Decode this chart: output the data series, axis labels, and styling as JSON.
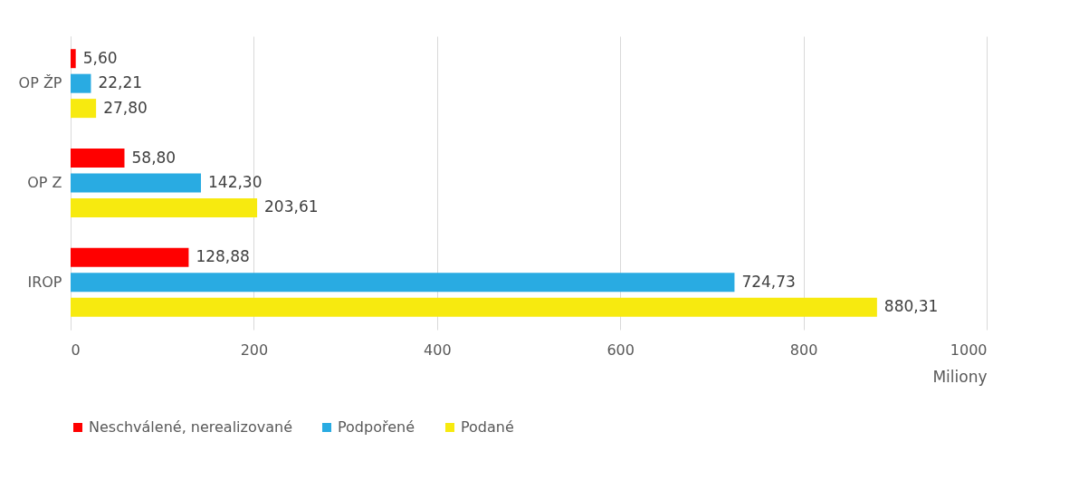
{
  "chart_data": {
    "type": "bar",
    "orientation": "horizontal",
    "categories": [
      "OP ŽP",
      "OP Z",
      "IROP"
    ],
    "series": [
      {
        "name": "Neschválené, nerealizované",
        "color": "#ff0000",
        "values": [
          5.6,
          58.8,
          128.88
        ],
        "value_labels": [
          "5,60",
          "58,80",
          "128,88"
        ]
      },
      {
        "name": "Podpořené",
        "color": "#29abe2",
        "values": [
          22.21,
          142.3,
          724.73
        ],
        "value_labels": [
          "22,21",
          "142,30",
          "724,73"
        ]
      },
      {
        "name": "Podané",
        "color": "#f7ea0f",
        "values": [
          27.8,
          203.61,
          880.31
        ],
        "value_labels": [
          "27,80",
          "203,61",
          "880,31"
        ]
      }
    ],
    "xlim": [
      0,
      1000
    ],
    "xticks": [
      0,
      200,
      400,
      600,
      800,
      1000
    ],
    "xlabel": "Miliony",
    "grid": "x",
    "legend": "bottom"
  }
}
